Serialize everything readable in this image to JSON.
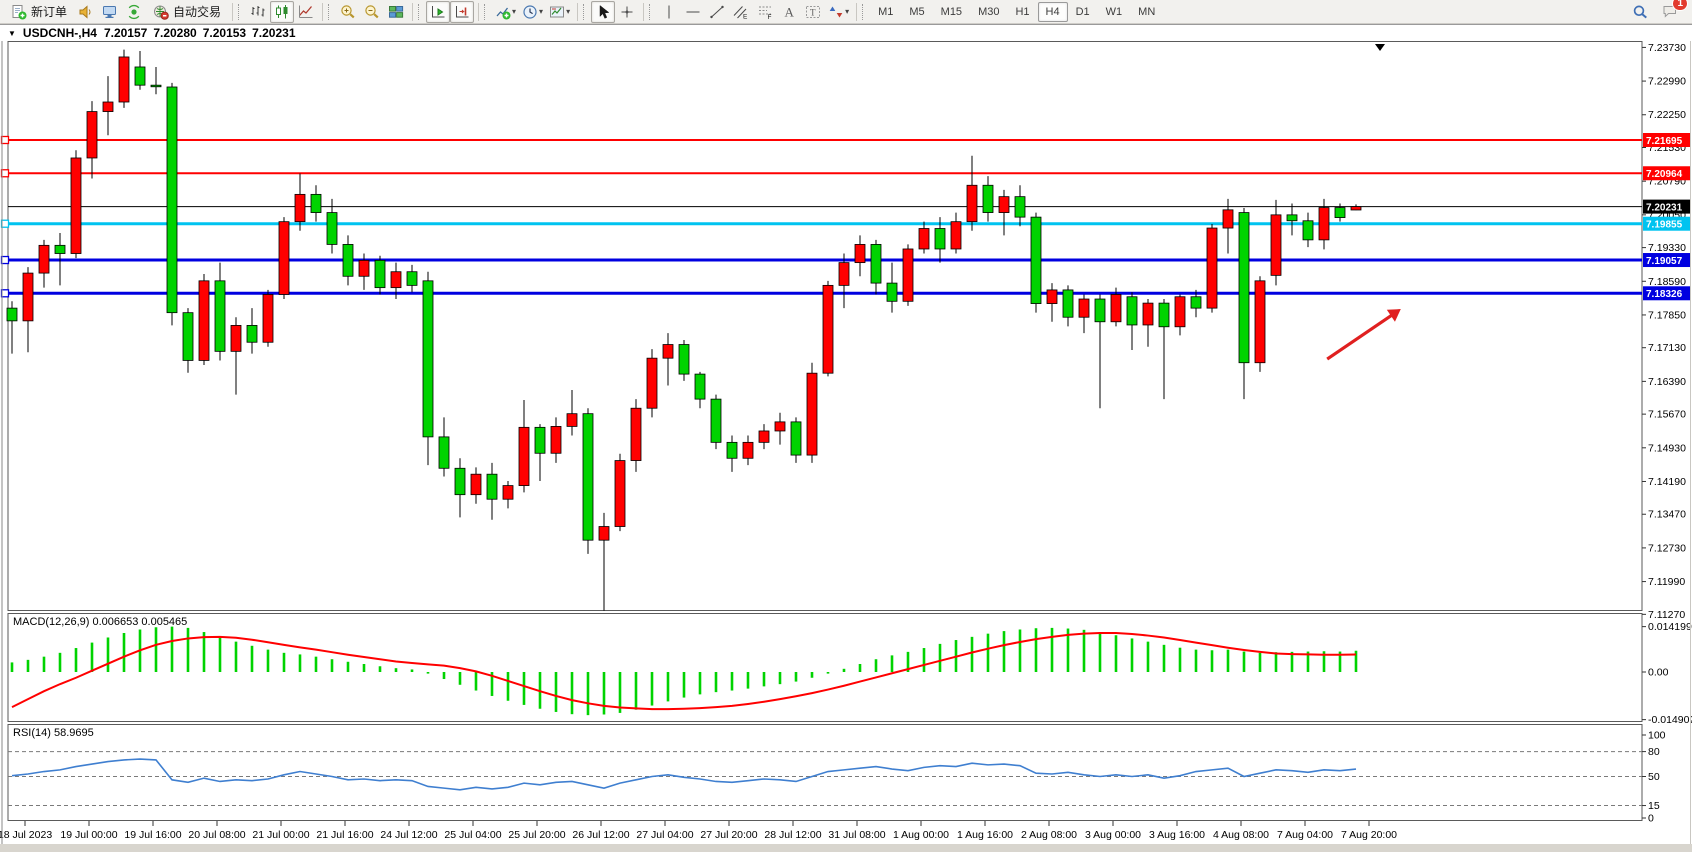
{
  "toolbar": {
    "groups": [
      {
        "name": "trade",
        "items": [
          {
            "icon": "new-order",
            "label": "新订单"
          },
          {
            "icon": "sound"
          },
          {
            "icon": "terminal"
          },
          {
            "icon": "signals"
          },
          {
            "icon": "auto-trading",
            "label": "自动交易"
          }
        ]
      },
      {
        "name": "chart-type",
        "items": [
          {
            "icon": "bar-chart"
          },
          {
            "icon": "candle-chart",
            "active": true
          },
          {
            "icon": "line-chart"
          }
        ]
      },
      {
        "name": "zoom",
        "items": [
          {
            "icon": "zoom-in"
          },
          {
            "icon": "zoom-out"
          },
          {
            "icon": "tile-windows"
          }
        ]
      },
      {
        "name": "scroll",
        "items": [
          {
            "icon": "auto-scroll",
            "active": true
          },
          {
            "icon": "chart-shift",
            "active": true
          }
        ]
      },
      {
        "name": "objects-add",
        "items": [
          {
            "icon": "indicators",
            "dropdown": true
          },
          {
            "icon": "periods",
            "dropdown": true
          },
          {
            "icon": "templates",
            "dropdown": true
          }
        ]
      },
      {
        "name": "pointer",
        "items": [
          {
            "icon": "cursor",
            "active": true
          },
          {
            "icon": "crosshair"
          }
        ]
      },
      {
        "name": "draw",
        "items": [
          {
            "icon": "vertical-line"
          },
          {
            "icon": "horizontal-line"
          },
          {
            "icon": "trendline"
          },
          {
            "icon": "equidistant-channel"
          },
          {
            "icon": "fibonacci"
          },
          {
            "icon": "text"
          },
          {
            "icon": "text-label"
          },
          {
            "icon": "arrows",
            "dropdown": true
          }
        ]
      }
    ],
    "timeframes": {
      "items": [
        "M1",
        "M5",
        "M15",
        "M30",
        "H1",
        "H4",
        "D1",
        "W1",
        "MN"
      ],
      "active": "H4"
    },
    "right": {
      "notification_count": "1"
    }
  },
  "chart": {
    "title": {
      "symbol_period": "USDCNH-,H4",
      "open": "7.20157",
      "high": "7.20280",
      "low": "7.20153",
      "close": "7.20231"
    }
  },
  "chart_data": [
    {
      "type": "candlestick",
      "title": "USDCNH-,H4",
      "up_color": "#FF0000",
      "down_color": "#00D300",
      "ylim": [
        7.1127,
        7.239
      ],
      "y_ticks": [
        "7.23730",
        "7.22990",
        "7.22250",
        "7.21530",
        "7.20790",
        "7.20050",
        "7.19330",
        "7.18590",
        "7.17850",
        "7.17130",
        "7.16390",
        "7.15670",
        "7.14930",
        "7.14190",
        "7.13470",
        "7.12730",
        "7.11990",
        "7.11270"
      ],
      "x_labels": [
        "18 Jul 2023",
        "19 Jul 00:00",
        "19 Jul 16:00",
        "20 Jul 08:00",
        "21 Jul 00:00",
        "21 Jul 16:00",
        "24 Jul 12:00",
        "25 Jul 04:00",
        "25 Jul 20:00",
        "26 Jul 12:00",
        "27 Jul 04:00",
        "27 Jul 20:00",
        "28 Jul 12:00",
        "31 Jul 08:00",
        "1 Aug 00:00",
        "1 Aug 16:00",
        "2 Aug 08:00",
        "3 Aug 00:00",
        "3 Aug 16:00",
        "4 Aug 08:00",
        "7 Aug 04:00",
        "7 Aug 20:00"
      ],
      "hlines": [
        {
          "price": 7.21695,
          "label": "7.21695",
          "color": "#FF0000",
          "width": 2
        },
        {
          "price": 7.20964,
          "label": "7.20964",
          "color": "#FF0000",
          "width": 2
        },
        {
          "price": 7.20231,
          "label": "7.20231",
          "color": "#000000",
          "width": 1
        },
        {
          "price": 7.19855,
          "label": "7.19855",
          "color": "#00C3F0",
          "width": 3
        },
        {
          "price": 7.19057,
          "label": "7.19057",
          "color": "#0000E0",
          "width": 3
        },
        {
          "price": 7.18326,
          "label": "7.18326",
          "color": "#0000E0",
          "width": 3
        }
      ],
      "candles": [
        [
          7.18,
          7.1815,
          7.17,
          7.1772
        ],
        [
          7.1772,
          7.189,
          7.1703,
          7.1877
        ],
        [
          7.1877,
          7.195,
          7.1845,
          7.1938
        ],
        [
          7.1938,
          7.1965,
          7.185,
          7.192
        ],
        [
          7.192,
          7.2147,
          7.191,
          7.213
        ],
        [
          7.213,
          7.2255,
          7.2085,
          7.2232
        ],
        [
          7.2232,
          7.231,
          7.218,
          7.2253
        ],
        [
          7.2253,
          7.2368,
          7.224,
          7.2352
        ],
        [
          7.233,
          7.2365,
          7.228,
          7.229
        ],
        [
          7.229,
          7.233,
          7.227,
          7.2287
        ],
        [
          7.2286,
          7.2295,
          7.1762,
          7.179
        ],
        [
          7.179,
          7.18,
          7.1658,
          7.1685
        ],
        [
          7.1685,
          7.1875,
          7.1675,
          7.186
        ],
        [
          7.186,
          7.19,
          7.1685,
          7.1705
        ],
        [
          7.1705,
          7.178,
          7.161,
          7.1762
        ],
        [
          7.1762,
          7.18,
          7.17,
          7.1725
        ],
        [
          7.1725,
          7.184,
          7.1715,
          7.183
        ],
        [
          7.183,
          7.2,
          7.182,
          7.199
        ],
        [
          7.199,
          7.2096,
          7.197,
          7.205
        ],
        [
          7.205,
          7.207,
          7.199,
          7.201
        ],
        [
          7.201,
          7.204,
          7.192,
          7.194
        ],
        [
          7.194,
          7.196,
          7.185,
          7.187
        ],
        [
          7.187,
          7.192,
          7.184,
          7.1905
        ],
        [
          7.1905,
          7.1915,
          7.183,
          7.1845
        ],
        [
          7.1845,
          7.19,
          7.182,
          7.188
        ],
        [
          7.188,
          7.1895,
          7.1835,
          7.185
        ],
        [
          7.186,
          7.188,
          7.1455,
          7.1517
        ],
        [
          7.1517,
          7.156,
          7.143,
          7.1448
        ],
        [
          7.1448,
          7.147,
          7.134,
          7.139
        ],
        [
          7.139,
          7.145,
          7.137,
          7.1435
        ],
        [
          7.1435,
          7.146,
          7.1335,
          7.138
        ],
        [
          7.138,
          7.142,
          7.136,
          7.141
        ],
        [
          7.141,
          7.1598,
          7.1395,
          7.1538
        ],
        [
          7.1538,
          7.1545,
          7.142,
          7.1481
        ],
        [
          7.1481,
          7.156,
          7.146,
          7.154
        ],
        [
          7.154,
          7.162,
          7.152,
          7.1568
        ],
        [
          7.1568,
          7.158,
          7.126,
          7.129
        ],
        [
          7.129,
          7.135,
          7.1135,
          7.132
        ],
        [
          7.132,
          7.148,
          7.131,
          7.1465
        ],
        [
          7.1465,
          7.16,
          7.144,
          7.158
        ],
        [
          7.158,
          7.171,
          7.156,
          7.169
        ],
        [
          7.169,
          7.1745,
          7.163,
          7.172
        ],
        [
          7.172,
          7.173,
          7.164,
          7.1655
        ],
        [
          7.1655,
          7.166,
          7.158,
          7.16
        ],
        [
          7.16,
          7.161,
          7.149,
          7.1505
        ],
        [
          7.1505,
          7.152,
          7.144,
          7.147
        ],
        [
          7.147,
          7.152,
          7.1455,
          7.1505
        ],
        [
          7.1505,
          7.1545,
          7.149,
          7.153
        ],
        [
          7.153,
          7.157,
          7.15,
          7.155
        ],
        [
          7.155,
          7.156,
          7.146,
          7.1477
        ],
        [
          7.1477,
          7.168,
          7.146,
          7.1657
        ],
        [
          7.1657,
          7.186,
          7.165,
          7.185
        ],
        [
          7.185,
          7.192,
          7.18,
          7.19
        ],
        [
          7.19,
          7.196,
          7.187,
          7.194
        ],
        [
          7.194,
          7.195,
          7.183,
          7.1855
        ],
        [
          7.1855,
          7.19,
          7.179,
          7.1815
        ],
        [
          7.1815,
          7.194,
          7.1805,
          7.193
        ],
        [
          7.193,
          7.199,
          7.192,
          7.1975
        ],
        [
          7.1975,
          7.2,
          7.19,
          7.193
        ],
        [
          7.193,
          7.201,
          7.192,
          7.199
        ],
        [
          7.199,
          7.2135,
          7.197,
          7.207
        ],
        [
          7.207,
          7.209,
          7.199,
          7.201
        ],
        [
          7.201,
          7.206,
          7.196,
          7.2045
        ],
        [
          7.2045,
          7.207,
          7.198,
          7.2
        ],
        [
          7.2,
          7.201,
          7.179,
          7.181
        ],
        [
          7.181,
          7.1855,
          7.177,
          7.184
        ],
        [
          7.184,
          7.185,
          7.176,
          7.178
        ],
        [
          7.178,
          7.183,
          7.1745,
          7.182
        ],
        [
          7.182,
          7.183,
          7.158,
          7.177
        ],
        [
          7.177,
          7.1845,
          7.176,
          7.183
        ],
        [
          7.1825,
          7.1835,
          7.1708,
          7.1763
        ],
        [
          7.1763,
          7.182,
          7.1715,
          7.1811
        ],
        [
          7.1811,
          7.182,
          7.16,
          7.1759
        ],
        [
          7.1759,
          7.183,
          7.174,
          7.1825
        ],
        [
          7.1825,
          7.184,
          7.178,
          7.18
        ],
        [
          7.18,
          7.1985,
          7.179,
          7.1976
        ],
        [
          7.1976,
          7.204,
          7.192,
          7.2016
        ],
        [
          7.201,
          7.202,
          7.16,
          7.168
        ],
        [
          7.168,
          7.187,
          7.166,
          7.186
        ],
        [
          7.1872,
          7.2038,
          7.185,
          7.2005
        ],
        [
          7.2005,
          7.203,
          7.196,
          7.1992
        ],
        [
          7.1992,
          7.201,
          7.1934,
          7.195
        ],
        [
          7.195,
          7.204,
          7.1929,
          7.2021
        ],
        [
          7.2021,
          7.203,
          7.199,
          7.1999
        ],
        [
          7.20157,
          7.2028,
          7.20153,
          7.20231
        ]
      ],
      "annotations": [
        {
          "type": "arrow",
          "color": "#E02020",
          "from": {
            "bar": 82.2,
            "price": 7.1688
          },
          "to": {
            "bar": 86.8,
            "price": 7.1798
          }
        },
        {
          "type": "triangle-down",
          "bar": 85.5
        }
      ]
    },
    {
      "type": "bar",
      "name": "MACD(12,26,9)",
      "values_label": "0.006653 0.005465",
      "macd_value": 0.006653,
      "signal_value": 0.005465,
      "y_ticks": [
        "0.014199",
        "0.00",
        "-0.014902"
      ],
      "hist_color": "#00D300",
      "signal_color": "#FF0000",
      "hist": [
        0.003,
        0.0038,
        0.0048,
        0.006,
        0.0075,
        0.0092,
        0.0108,
        0.0122,
        0.0133,
        0.014,
        0.0142,
        0.0138,
        0.0125,
        0.0108,
        0.0095,
        0.0082,
        0.007,
        0.006,
        0.0055,
        0.0048,
        0.004,
        0.0032,
        0.0025,
        0.0018,
        0.0012,
        0.0008,
        -0.0005,
        -0.0022,
        -0.004,
        -0.0058,
        -0.0075,
        -0.009,
        -0.0103,
        -0.0115,
        -0.0125,
        -0.0132,
        -0.0135,
        -0.0133,
        -0.0128,
        -0.0118,
        -0.0105,
        -0.0092,
        -0.008,
        -0.007,
        -0.0063,
        -0.0058,
        -0.0052,
        -0.0045,
        -0.0038,
        -0.003,
        -0.0018,
        -0.0005,
        0.001,
        0.0025,
        0.004,
        0.0052,
        0.0063,
        0.0075,
        0.0088,
        0.01,
        0.011,
        0.012,
        0.0128,
        0.0133,
        0.0137,
        0.0138,
        0.0136,
        0.0132,
        0.0125,
        0.0115,
        0.0105,
        0.0095,
        0.0085,
        0.0076,
        0.007,
        0.0068,
        0.007,
        0.0064,
        0.006,
        0.0062,
        0.0063,
        0.0064,
        0.0065,
        0.0064,
        0.006653
      ],
      "signal": [
        -0.011,
        -0.0085,
        -0.006,
        -0.0038,
        -0.0018,
        0.0004,
        0.0026,
        0.0048,
        0.0068,
        0.0085,
        0.0097,
        0.0105,
        0.0109,
        0.011,
        0.0107,
        0.0101,
        0.0093,
        0.0085,
        0.0077,
        0.007,
        0.0062,
        0.0054,
        0.0047,
        0.004,
        0.0033,
        0.0028,
        0.0024,
        0.002,
        0.0012,
        0.0002,
        -0.0012,
        -0.0028,
        -0.0044,
        -0.006,
        -0.0075,
        -0.0088,
        -0.0098,
        -0.0106,
        -0.0111,
        -0.0114,
        -0.0116,
        -0.0116,
        -0.0115,
        -0.0113,
        -0.011,
        -0.0106,
        -0.01,
        -0.0093,
        -0.0085,
        -0.0076,
        -0.0066,
        -0.0055,
        -0.0043,
        -0.003,
        -0.0017,
        -0.0004,
        0.0009,
        0.0022,
        0.0035,
        0.0048,
        0.0061,
        0.0073,
        0.0084,
        0.0094,
        0.0103,
        0.011,
        0.0116,
        0.012,
        0.0122,
        0.0122,
        0.0119,
        0.0114,
        0.0108,
        0.01,
        0.0092,
        0.0084,
        0.0076,
        0.0069,
        0.0063,
        0.0058,
        0.0056,
        0.0055,
        0.0054,
        0.0054,
        0.005465
      ]
    },
    {
      "type": "line",
      "name": "RSI(14)",
      "value": "58.9695",
      "line_color": "#3F7FD0",
      "ylim": [
        0,
        100
      ],
      "levels": [
        "100",
        "80",
        "50",
        "15",
        "0"
      ],
      "dashed_levels": [
        80,
        50,
        15
      ],
      "series": [
        51,
        53,
        56,
        58,
        62,
        65,
        68,
        70,
        71,
        70,
        46,
        43,
        48,
        44,
        46,
        45,
        47,
        52,
        56,
        53,
        50,
        46,
        47,
        45,
        46,
        45,
        38,
        36,
        34,
        37,
        35,
        37,
        42,
        40,
        43,
        44,
        40,
        36,
        42,
        46,
        50,
        52,
        49,
        47,
        44,
        43,
        45,
        47,
        46,
        44,
        50,
        56,
        58,
        60,
        62,
        59,
        57,
        61,
        63,
        62,
        66,
        64,
        65,
        63,
        54,
        53,
        55,
        52,
        50,
        52,
        50,
        52,
        48,
        51,
        56,
        58,
        60,
        50,
        54,
        58,
        57,
        55,
        58,
        57,
        58.97
      ]
    }
  ]
}
